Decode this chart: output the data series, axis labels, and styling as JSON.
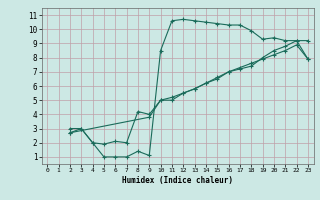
{
  "xlabel": "Humidex (Indice chaleur)",
  "bg_color": "#cce8e4",
  "grid_color": "#c0a0a8",
  "line_color": "#1a6b5a",
  "xlim": [
    -0.5,
    23.5
  ],
  "ylim": [
    0.5,
    11.5
  ],
  "xticks": [
    0,
    1,
    2,
    3,
    4,
    5,
    6,
    7,
    8,
    9,
    10,
    11,
    12,
    13,
    14,
    15,
    16,
    17,
    18,
    19,
    20,
    21,
    22,
    23
  ],
  "yticks": [
    1,
    2,
    3,
    4,
    5,
    6,
    7,
    8,
    9,
    10,
    11
  ],
  "line1_x": [
    2,
    3,
    4,
    5,
    6,
    7,
    8,
    9,
    10,
    11,
    12,
    13,
    14,
    15,
    16,
    17,
    18,
    19,
    20,
    21,
    22,
    23
  ],
  "line1_y": [
    3,
    3,
    2,
    1,
    1,
    1,
    1.4,
    1.1,
    8.5,
    10.6,
    10.7,
    10.6,
    10.5,
    10.4,
    10.3,
    10.3,
    9.9,
    9.3,
    9.4,
    9.2,
    9.2,
    9.2
  ],
  "line2_x": [
    2,
    3,
    4,
    5,
    6,
    7,
    8,
    9,
    10,
    11,
    12,
    13,
    14,
    15,
    16,
    17,
    18,
    19,
    20,
    21,
    22,
    23
  ],
  "line2_y": [
    2.7,
    3.0,
    2.0,
    1.9,
    2.1,
    2.0,
    4.2,
    4.0,
    5.0,
    5.0,
    5.5,
    5.8,
    6.2,
    6.5,
    7.0,
    7.2,
    7.4,
    8.0,
    8.5,
    8.8,
    9.2,
    7.9
  ],
  "line3_x": [
    2,
    9,
    10,
    11,
    12,
    13,
    14,
    15,
    16,
    17,
    18,
    19,
    20,
    21,
    22,
    23
  ],
  "line3_y": [
    2.7,
    3.8,
    5.0,
    5.2,
    5.5,
    5.8,
    6.2,
    6.6,
    7.0,
    7.3,
    7.6,
    7.9,
    8.2,
    8.5,
    8.9,
    7.9
  ]
}
